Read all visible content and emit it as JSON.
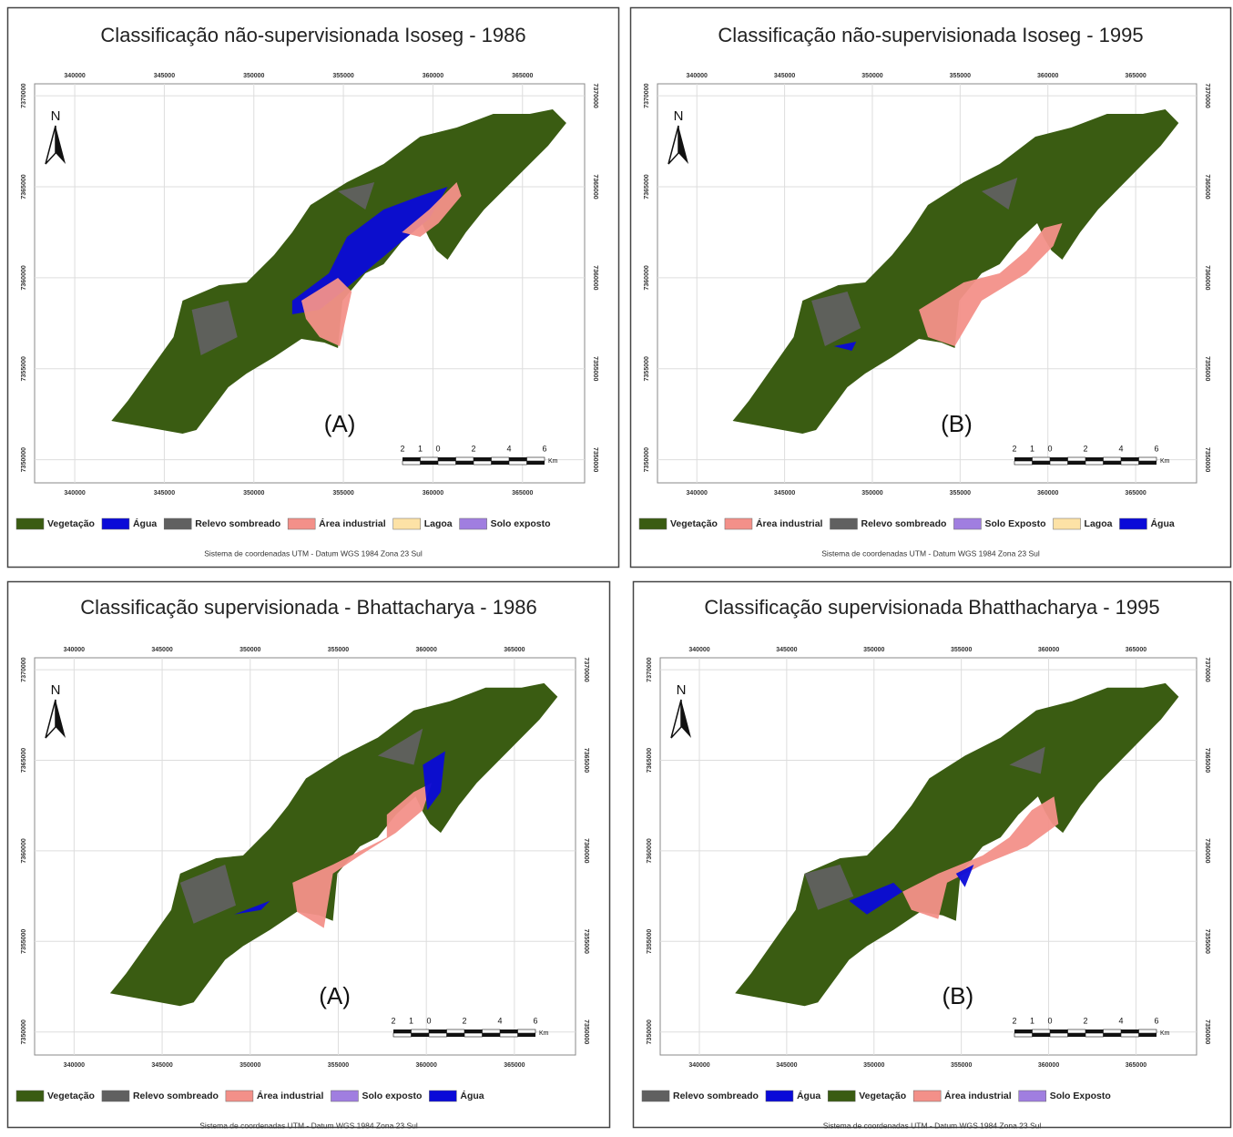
{
  "footer_common": "Sistema de coordenadas UTM - Datum WGS 1984 Zona 23 Sul",
  "north": "N",
  "x_ticks": [
    340000,
    345000,
    350000,
    355000,
    360000,
    365000
  ],
  "y_ticks": [
    7370000,
    7365000,
    7360000,
    7355000,
    7350000
  ],
  "scale_labels": [
    "2",
    "1",
    "0",
    "2",
    "4",
    "6"
  ],
  "scale_unit": "Km",
  "panels": [
    {
      "title": "Classificação não-supervisionada Isoseg - 1986",
      "label": "(A)",
      "legend": [
        {
          "name": "Vegetação",
          "color": "#3a5c12"
        },
        {
          "name": "Água",
          "color": "#0a0ad8"
        },
        {
          "name": "Relevo sombreado",
          "color": "#606060"
        },
        {
          "name": "Área industrial",
          "color": "#f39089"
        },
        {
          "name": "Lagoa",
          "color": "#fde2a6"
        },
        {
          "name": "Solo exposto",
          "color": "#a07ee0"
        }
      ]
    },
    {
      "title": "Classificação não-supervisionada Isoseg - 1995",
      "label": "(B)",
      "legend": [
        {
          "name": "Vegetação",
          "color": "#3a5c12"
        },
        {
          "name": "Área industrial",
          "color": "#f39089"
        },
        {
          "name": "Relevo sombreado",
          "color": "#606060"
        },
        {
          "name": "Solo Exposto",
          "color": "#a07ee0"
        },
        {
          "name": "Lagoa",
          "color": "#fde2a6"
        },
        {
          "name": "Água",
          "color": "#0a0ad8"
        }
      ]
    },
    {
      "title": "Classificação supervisionada - Bhattacharya - 1986",
      "label": "(A)",
      "legend": [
        {
          "name": "Vegetação",
          "color": "#3a5c12"
        },
        {
          "name": "Relevo sombreado",
          "color": "#606060"
        },
        {
          "name": "Área industrial",
          "color": "#f39089"
        },
        {
          "name": "Solo exposto",
          "color": "#a07ee0"
        },
        {
          "name": "Água",
          "color": "#0a0ad8"
        }
      ]
    },
    {
      "title": "Classificação supervisionada Bhatthacharya - 1995",
      "label": "(B)",
      "legend": [
        {
          "name": "Relevo sombreado",
          "color": "#606060"
        },
        {
          "name": "Água",
          "color": "#0a0ad8"
        },
        {
          "name": "Vegetação",
          "color": "#3a5c12"
        },
        {
          "name": "Área industrial",
          "color": "#f39089"
        },
        {
          "name": "Solo Exposto",
          "color": "#a07ee0"
        }
      ]
    }
  ]
}
